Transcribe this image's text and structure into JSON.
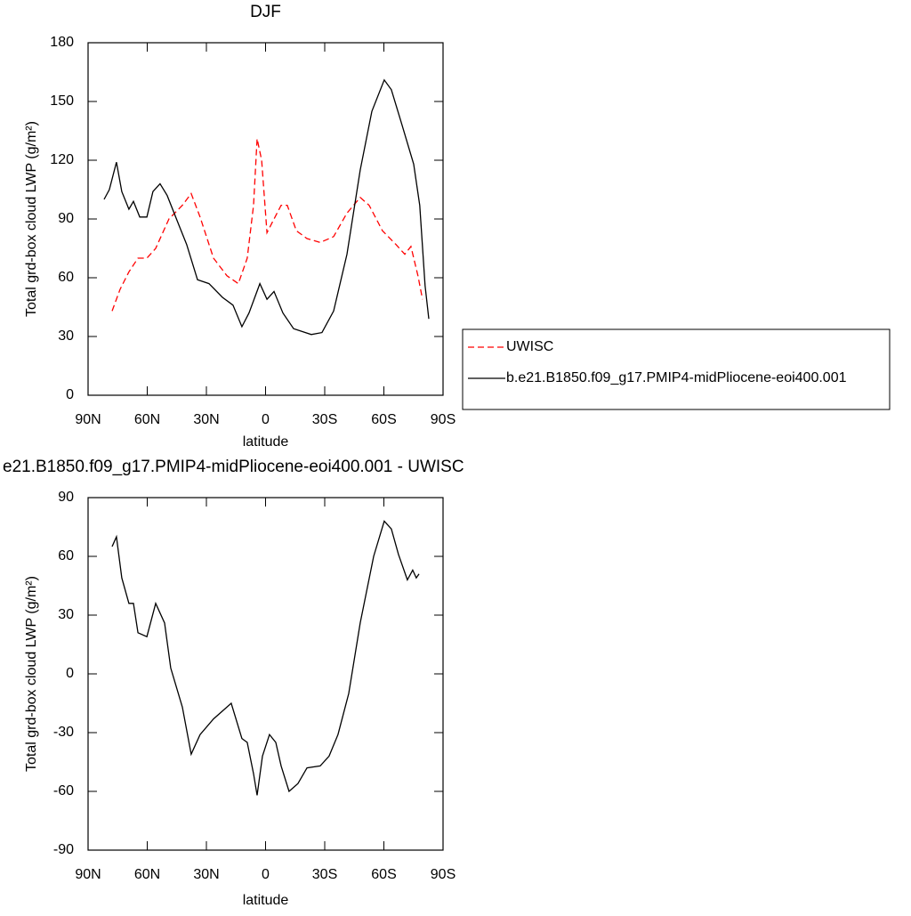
{
  "chart_data": [
    {
      "type": "line",
      "title": "DJF",
      "x_label": "latitude",
      "y_label": "Total grd-box cloud LWP (g/m²)",
      "xlim": [
        90,
        -90
      ],
      "ylim": [
        0,
        180
      ],
      "xticks": [
        {
          "value": 90,
          "label": "90N"
        },
        {
          "value": 60,
          "label": "60N"
        },
        {
          "value": 30,
          "label": "30N"
        },
        0,
        {
          "value": -30,
          "label": "30S"
        },
        {
          "value": -60,
          "label": "60S"
        },
        {
          "value": -90,
          "label": "90S"
        }
      ],
      "yticks": [
        0,
        30,
        60,
        90,
        120,
        150,
        180
      ],
      "legend": "right",
      "series": [
        {
          "name": "UWISC",
          "color": "#ff0000",
          "dashed": true,
          "x": [
            77.8,
            73.8,
            69.3,
            64.7,
            60.2,
            55.7,
            49,
            42.2,
            37.7,
            33.2,
            26.4,
            19.6,
            13.8,
            9.3,
            6.1,
            4.3,
            2,
            -0.7,
            -4.3,
            -7.9,
            -11,
            -15.6,
            -21,
            -27.7,
            -34.5,
            -41.3,
            -48,
            -52.5,
            -59.3,
            -66.1,
            -70.6,
            -73.7,
            -77.3,
            -79.6
          ],
          "values": [
            43,
            54,
            63,
            70,
            70,
            75,
            90,
            97,
            103,
            91,
            70,
            61,
            57,
            70,
            97,
            131,
            120,
            83,
            90,
            97,
            97,
            84,
            80,
            78,
            81,
            93,
            101,
            97,
            84,
            77,
            72,
            76,
            61,
            49
          ]
        },
        {
          "name": "b.e21.B1850.f09_g17.PMIP4-midPliocene-eoi400.001",
          "color": "#000000",
          "dashed": false,
          "x": [
            81.9,
            79.2,
            75.6,
            72.9,
            69.3,
            67,
            63.8,
            60.2,
            57.1,
            53.5,
            49.9,
            44.4,
            40,
            34.5,
            28.7,
            21.9,
            16.5,
            12,
            8.4,
            2.9,
            -0.7,
            -4.3,
            -8.8,
            -14.2,
            -23.2,
            -28.6,
            -34.5,
            -41.3,
            -48,
            -53.9,
            -60.2,
            -63.8,
            -69.2,
            -75.1,
            -78.2,
            -80.9,
            -82.8
          ],
          "values": [
            100,
            105,
            119,
            104,
            95,
            99,
            91,
            91,
            104,
            108,
            102,
            88,
            77,
            59,
            57,
            50,
            46,
            35,
            42,
            57,
            49,
            53,
            42,
            34,
            31,
            32,
            43,
            72,
            115,
            145,
            161,
            156,
            138,
            118,
            97,
            56,
            39
          ]
        }
      ]
    },
    {
      "type": "line",
      "title": "e21.B1850.f09_g17.PMIP4-midPliocene-eoi400.001 - UWISC",
      "x_label": "latitude",
      "y_label": "Total grd-box cloud LWP (g/m²)",
      "xlim": [
        90,
        -90
      ],
      "ylim": [
        -90,
        90
      ],
      "xticks": [
        {
          "value": 90,
          "label": "90N"
        },
        {
          "value": 60,
          "label": "60N"
        },
        {
          "value": 30,
          "label": "30N"
        },
        0,
        {
          "value": -30,
          "label": "30S"
        },
        {
          "value": -60,
          "label": "60S"
        },
        {
          "value": -90,
          "label": "90S"
        }
      ],
      "yticks": [
        -90,
        -60,
        -30,
        0,
        30,
        60,
        90
      ],
      "series": [
        {
          "color": "#000000",
          "dashed": false,
          "x": [
            77.8,
            75.6,
            72.9,
            69.3,
            67,
            64.7,
            60.2,
            55.7,
            51.2,
            48.1,
            42.2,
            37.7,
            33.2,
            26.4,
            17.4,
            12,
            9.3,
            6.1,
            4.3,
            1.6,
            -2,
            -5.2,
            -7.9,
            -11.9,
            -16.4,
            -21,
            -27.7,
            -32.2,
            -36.7,
            -42.2,
            -48,
            -54.8,
            -60.2,
            -63.8,
            -67.4,
            -71.9,
            -74.6,
            -76.4,
            -77.8
          ],
          "values": [
            65,
            70,
            49,
            36,
            36,
            21,
            19,
            36,
            26,
            3,
            -17,
            -41,
            -31,
            -23,
            -15,
            -33,
            -35,
            -51,
            -62,
            -42,
            -31,
            -35,
            -47,
            -60,
            -56,
            -48,
            -47,
            -42,
            -31,
            -10,
            26,
            60,
            78,
            74,
            61,
            48,
            53,
            49,
            51
          ]
        }
      ]
    }
  ]
}
